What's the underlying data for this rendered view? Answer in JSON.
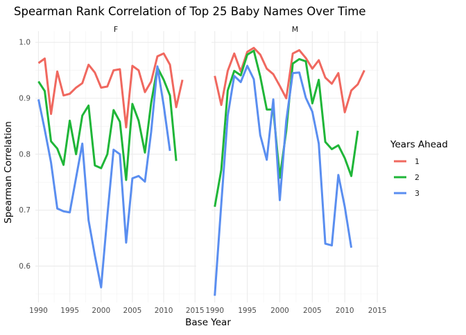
{
  "chart_data": {
    "type": "line",
    "title": "Spearman Rank Correlation of Top 25 Baby Names Over Time",
    "xlabel": "Base Year",
    "ylabel": "Spearman Correlation",
    "xlim": [
      1989.5,
      2015.2
    ],
    "ylim": [
      0.535,
      1.02
    ],
    "x_ticks": [
      1990,
      1995,
      2000,
      2005,
      2010,
      2015
    ],
    "y_ticks": [
      0.6,
      0.7,
      0.8,
      0.9,
      1.0
    ],
    "y_tick_labels": [
      "0.6",
      "0.7",
      "0.8",
      "0.9",
      "1.0"
    ],
    "grid": true,
    "legend": {
      "title": "Years Ahead",
      "position": "right"
    },
    "colors": {
      "1": "#F0685F",
      "2": "#1FB638",
      "3": "#5A8EF0"
    },
    "panels": [
      {
        "label": "F",
        "series": [
          {
            "name": "1",
            "x": [
              1990,
              1991,
              1992,
              1993,
              1994,
              1995,
              1996,
              1997,
              1998,
              1999,
              2000,
              2001,
              2002,
              2003,
              2004,
              2005,
              2006,
              2007,
              2008,
              2009,
              2010,
              2011,
              2012,
              2013
            ],
            "values": [
              0.963,
              0.971,
              0.872,
              0.948,
              0.905,
              0.908,
              0.919,
              0.927,
              0.96,
              0.946,
              0.919,
              0.921,
              0.95,
              0.952,
              0.848,
              0.958,
              0.95,
              0.911,
              0.93,
              0.975,
              0.98,
              0.96,
              0.884,
              0.933
            ]
          },
          {
            "name": "2",
            "x": [
              1990,
              1991,
              1992,
              1993,
              1994,
              1995,
              1996,
              1997,
              1998,
              1999,
              2000,
              2001,
              2002,
              2003,
              2004,
              2005,
              2006,
              2007,
              2008,
              2009,
              2010,
              2011,
              2012
            ],
            "values": [
              0.93,
              0.913,
              0.823,
              0.81,
              0.781,
              0.86,
              0.8,
              0.869,
              0.887,
              0.78,
              0.775,
              0.8,
              0.879,
              0.858,
              0.754,
              0.89,
              0.86,
              0.803,
              0.892,
              0.955,
              0.933,
              0.905,
              0.788
            ]
          },
          {
            "name": "3",
            "x": [
              1990,
              1991,
              1992,
              1993,
              1994,
              1995,
              1996,
              1997,
              1998,
              1999,
              2000,
              2001,
              2002,
              2003,
              2004,
              2005,
              2006,
              2007,
              2008,
              2009,
              2010,
              2011
            ],
            "values": [
              0.898,
              0.844,
              0.785,
              0.703,
              0.698,
              0.696,
              0.758,
              0.819,
              0.682,
              0.619,
              0.562,
              0.69,
              0.808,
              0.8,
              0.642,
              0.757,
              0.761,
              0.751,
              0.84,
              0.957,
              0.887,
              0.806
            ]
          }
        ]
      },
      {
        "label": "M",
        "series": [
          {
            "name": "1",
            "x": [
              1990,
              1991,
              1992,
              1993,
              1994,
              1995,
              1996,
              1997,
              1998,
              1999,
              2000,
              2001,
              2002,
              2003,
              2004,
              2005,
              2006,
              2007,
              2008,
              2009,
              2010,
              2011,
              2012,
              2013
            ],
            "values": [
              0.94,
              0.888,
              0.949,
              0.98,
              0.948,
              0.983,
              0.99,
              0.978,
              0.953,
              0.943,
              0.922,
              0.9,
              0.98,
              0.986,
              0.972,
              0.953,
              0.968,
              0.937,
              0.926,
              0.945,
              0.875,
              0.914,
              0.925,
              0.95
            ]
          },
          {
            "name": "2",
            "x": [
              1990,
              1991,
              1992,
              1993,
              1994,
              1995,
              1996,
              1997,
              1998,
              1999,
              2000,
              2001,
              2002,
              2003,
              2004,
              2005,
              2006,
              2007,
              2008,
              2009,
              2010,
              2011,
              2012
            ],
            "values": [
              0.706,
              0.772,
              0.914,
              0.949,
              0.941,
              0.978,
              0.985,
              0.939,
              0.88,
              0.88,
              0.758,
              0.842,
              0.962,
              0.97,
              0.966,
              0.891,
              0.933,
              0.822,
              0.809,
              0.816,
              0.793,
              0.761,
              0.842
            ]
          },
          {
            "name": "3",
            "x": [
              1990,
              1991,
              1992,
              1993,
              1994,
              1995,
              1996,
              1997,
              1998,
              1999,
              2000,
              2001,
              2002,
              2003,
              2004,
              2005,
              2006,
              2007,
              2008,
              2009,
              2010,
              2011
            ],
            "values": [
              0.547,
              0.711,
              0.869,
              0.94,
              0.929,
              0.958,
              0.934,
              0.834,
              0.79,
              0.898,
              0.718,
              0.86,
              0.945,
              0.946,
              0.901,
              0.876,
              0.819,
              0.64,
              0.637,
              0.763,
              0.706,
              0.633
            ]
          }
        ]
      }
    ]
  }
}
